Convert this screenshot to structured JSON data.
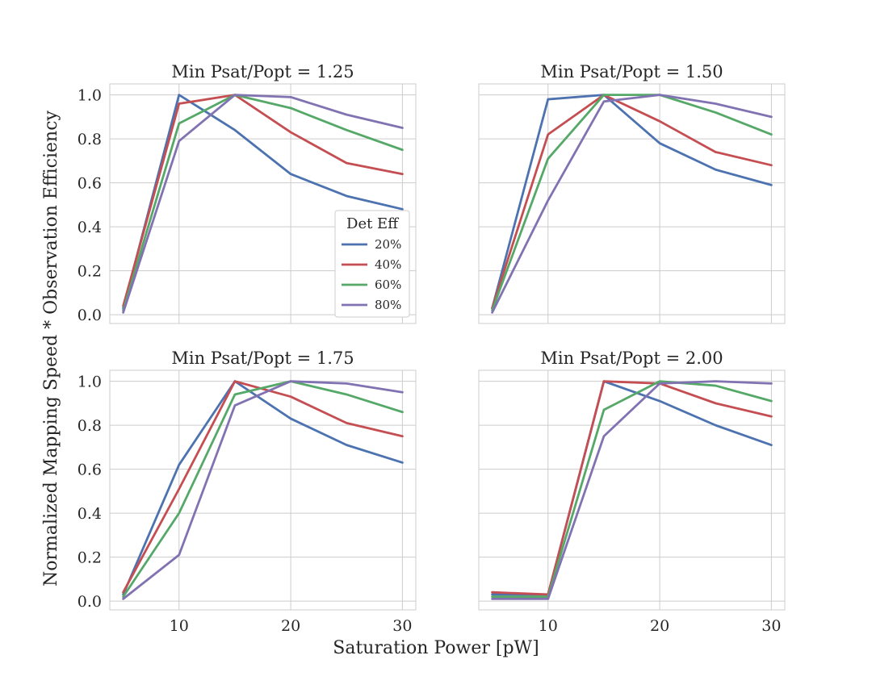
{
  "chart_data": {
    "type": "line",
    "xlabel": "Saturation Power [pW]",
    "ylabel": "Normalized Mapping Speed * Observation Efficiency",
    "x": [
      5,
      10,
      15,
      20,
      25,
      30
    ],
    "xlim": [
      3.8,
      31.2
    ],
    "ylim": [
      -0.04,
      1.05
    ],
    "xticks": [
      10,
      20,
      30
    ],
    "yticks": [
      0.0,
      0.2,
      0.4,
      0.6,
      0.8,
      1.0
    ],
    "grid": true,
    "legend": {
      "title": "Det Eff",
      "placement": "lower-right of top-left panel",
      "entries": [
        "20%",
        "40%",
        "60%",
        "80%"
      ]
    },
    "colors": {
      "20%": "#4c72b0",
      "40%": "#c44e52",
      "60%": "#55a868",
      "80%": "#8172b2"
    },
    "panels": [
      {
        "title": "Min Psat/Popt = 1.25",
        "series": [
          {
            "name": "20%",
            "values": [
              0.03,
              1.0,
              0.84,
              0.64,
              0.54,
              0.48
            ]
          },
          {
            "name": "40%",
            "values": [
              0.04,
              0.96,
              1.0,
              0.83,
              0.69,
              0.64
            ]
          },
          {
            "name": "60%",
            "values": [
              0.02,
              0.87,
              1.0,
              0.94,
              0.84,
              0.75
            ]
          },
          {
            "name": "80%",
            "values": [
              0.01,
              0.79,
              1.0,
              0.99,
              0.91,
              0.85
            ]
          }
        ]
      },
      {
        "title": "Min Psat/Popt = 1.50",
        "series": [
          {
            "name": "20%",
            "values": [
              0.03,
              0.98,
              1.0,
              0.78,
              0.66,
              0.59
            ]
          },
          {
            "name": "40%",
            "values": [
              0.03,
              0.82,
              1.0,
              0.88,
              0.74,
              0.68
            ]
          },
          {
            "name": "60%",
            "values": [
              0.02,
              0.71,
              1.0,
              1.0,
              0.92,
              0.82
            ]
          },
          {
            "name": "80%",
            "values": [
              0.01,
              0.52,
              0.97,
              1.0,
              0.96,
              0.9
            ]
          }
        ]
      },
      {
        "title": "Min Psat/Popt = 1.75",
        "series": [
          {
            "name": "20%",
            "values": [
              0.03,
              0.62,
              1.0,
              0.83,
              0.71,
              0.63
            ]
          },
          {
            "name": "40%",
            "values": [
              0.04,
              0.51,
              1.0,
              0.93,
              0.81,
              0.75
            ]
          },
          {
            "name": "60%",
            "values": [
              0.02,
              0.4,
              0.94,
              1.0,
              0.94,
              0.86
            ]
          },
          {
            "name": "80%",
            "values": [
              0.01,
              0.21,
              0.89,
              1.0,
              0.99,
              0.95
            ]
          }
        ]
      },
      {
        "title": "Min Psat/Popt = 2.00",
        "series": [
          {
            "name": "20%",
            "values": [
              0.03,
              0.03,
              1.0,
              0.91,
              0.8,
              0.71
            ]
          },
          {
            "name": "40%",
            "values": [
              0.04,
              0.03,
              1.0,
              0.99,
              0.9,
              0.84
            ]
          },
          {
            "name": "60%",
            "values": [
              0.02,
              0.02,
              0.87,
              1.0,
              0.98,
              0.91
            ]
          },
          {
            "name": "80%",
            "values": [
              0.01,
              0.01,
              0.75,
              0.99,
              1.0,
              0.99
            ]
          }
        ]
      }
    ]
  }
}
